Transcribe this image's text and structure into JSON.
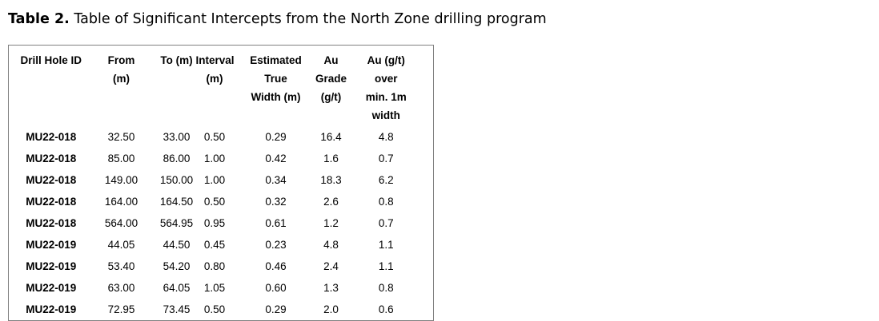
{
  "caption": {
    "label": "Table 2.",
    "text": " Table of Significant Intercepts from the North Zone drilling program"
  },
  "chart_data": {
    "type": "table",
    "columns": [
      "Drill Hole ID",
      "From\n(m)",
      "To (m)",
      "Interval\n(m)",
      "Estimated\nTrue\nWidth (m)",
      "Au\nGrade\n(g/t)",
      "Au (g/t)\nover\nmin. 1m\nwidth"
    ],
    "rows": [
      [
        "MU22-018",
        "32.50",
        "33.00",
        "0.50",
        "0.29",
        "16.4",
        "4.8"
      ],
      [
        "MU22-018",
        "85.00",
        "86.00",
        "1.00",
        "0.42",
        "1.6",
        "0.7"
      ],
      [
        "MU22-018",
        "149.00",
        "150.00",
        "1.00",
        "0.34",
        "18.3",
        "6.2"
      ],
      [
        "MU22-018",
        "164.00",
        "164.50",
        "0.50",
        "0.32",
        "2.6",
        "0.8"
      ],
      [
        "MU22-018",
        "564.00",
        "564.95",
        "0.95",
        "0.61",
        "1.2",
        "0.7"
      ],
      [
        "MU22-019",
        "44.05",
        "44.50",
        "0.45",
        "0.23",
        "4.8",
        "1.1"
      ],
      [
        "MU22-019",
        "53.40",
        "54.20",
        "0.80",
        "0.46",
        "2.4",
        "1.1"
      ],
      [
        "MU22-019",
        "63.00",
        "64.05",
        "1.05",
        "0.60",
        "1.3",
        "0.8"
      ],
      [
        "MU22-019",
        "72.95",
        "73.45",
        "0.50",
        "0.29",
        "2.0",
        "0.6"
      ]
    ]
  },
  "colors": {
    "text": "#000000",
    "border": "#808080",
    "background": "#ffffff"
  }
}
